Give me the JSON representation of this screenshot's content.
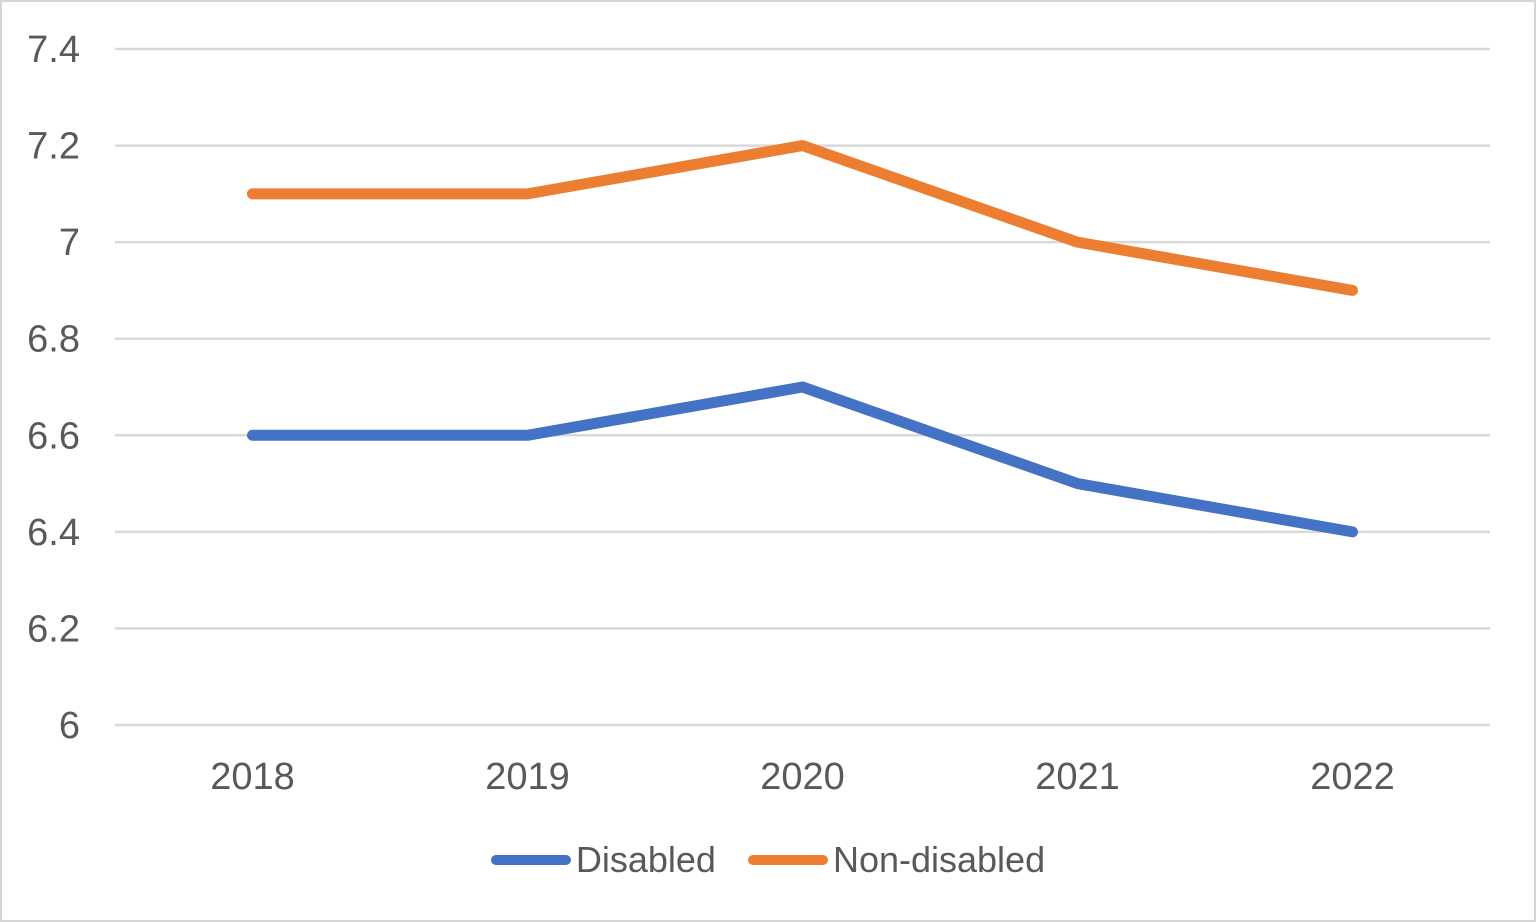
{
  "chart_data": {
    "type": "line",
    "title": "",
    "xlabel": "",
    "ylabel": "",
    "categories": [
      "2018",
      "2019",
      "2020",
      "2021",
      "2022"
    ],
    "series": [
      {
        "name": "Disabled",
        "color": "#4472C4",
        "values": [
          6.6,
          6.6,
          6.7,
          6.5,
          6.4
        ]
      },
      {
        "name": "Non-disabled",
        "color": "#ED7D31",
        "values": [
          7.1,
          7.1,
          7.2,
          7.0,
          6.9
        ]
      }
    ],
    "ylim": [
      6,
      7.4
    ],
    "ytick_step": 0.2,
    "ytick_labels": [
      "6",
      "6.2",
      "6.4",
      "6.6",
      "6.8",
      "7",
      "7.2",
      "7.4"
    ],
    "grid": true,
    "gridline_color": "#D9D9D9",
    "tick_color": "#595959",
    "frame_border_color": "#D6D6D6",
    "legend_position": "bottom"
  }
}
